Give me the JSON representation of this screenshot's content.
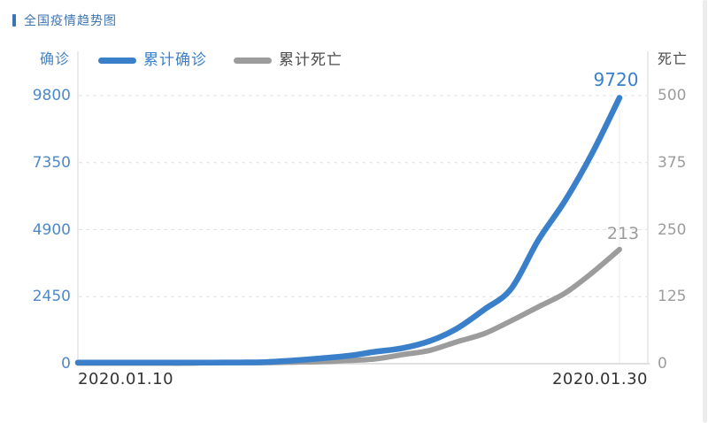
{
  "header": {
    "title": "全国疫情趋势图"
  },
  "chart_data": {
    "type": "line",
    "title": "全国疫情趋势图",
    "legend_position": "top",
    "grid": true,
    "x": [
      "2020.01.10",
      "2020.01.11",
      "2020.01.12",
      "2020.01.13",
      "2020.01.14",
      "2020.01.15",
      "2020.01.16",
      "2020.01.17",
      "2020.01.18",
      "2020.01.19",
      "2020.01.20",
      "2020.01.21",
      "2020.01.22",
      "2020.01.23",
      "2020.01.24",
      "2020.01.25",
      "2020.01.26",
      "2020.01.27",
      "2020.01.28",
      "2020.01.29",
      "2020.01.30"
    ],
    "x_axis": {
      "visible_labels": [
        "2020.01.10",
        "2020.01.30"
      ]
    },
    "left_axis": {
      "name": "确诊",
      "ticks": [
        "0",
        "2450",
        "4900",
        "7350",
        "9800"
      ],
      "max": 9800,
      "min": 0,
      "tick_color": "#4E89C8"
    },
    "right_axis": {
      "name": "死亡",
      "ticks": [
        "0",
        "125",
        "250",
        "375",
        "500"
      ],
      "max": 500,
      "min": 0,
      "tick_color": "#9C9C9C"
    },
    "series": [
      {
        "name": "累计确诊",
        "axis": "left",
        "color": "#3A7FCA",
        "legend_text_color": "#3A7FCA",
        "end_label": "9720",
        "values": [
          41,
          41,
          41,
          41,
          41,
          41,
          45,
          62,
          121,
          198,
          291,
          440,
          571,
          830,
          1287,
          1975,
          2744,
          4515,
          5974,
          7711,
          9720
        ]
      },
      {
        "name": "累计死亡",
        "axis": "right",
        "color": "#9C9C9C",
        "legend_text_color": "#4A4A4A",
        "end_label": "213",
        "values": [
          1,
          1,
          1,
          1,
          1,
          2,
          2,
          2,
          3,
          4,
          6,
          9,
          17,
          25,
          41,
          56,
          80,
          106,
          132,
          170,
          213
        ]
      }
    ]
  }
}
